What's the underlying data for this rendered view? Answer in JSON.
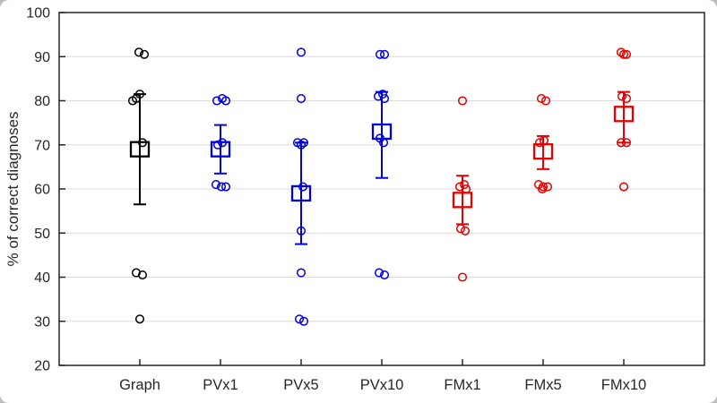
{
  "chart_data": {
    "type": "scatter",
    "title": "",
    "xlabel": "",
    "ylabel": "% of correct diagnoses",
    "ylim": [
      20,
      100
    ],
    "yticks": [
      20,
      30,
      40,
      50,
      60,
      70,
      80,
      90,
      100
    ],
    "grid": true,
    "legend": "none",
    "marker_style": {
      "points": "open-circle",
      "mean": "open-square",
      "error_bar": "vertical-with-caps"
    },
    "categories": [
      "Graph",
      "PVx1",
      "PVx5",
      "PVx10",
      "FMx1",
      "FMx5",
      "FMx10"
    ],
    "series": [
      {
        "category": "Graph",
        "color": "#000000",
        "points": [
          91,
          90.5,
          81.5,
          80.5,
          80,
          70.5,
          41,
          40.5,
          30.5
        ],
        "jitter": [
          -1,
          5,
          0,
          -4,
          -8,
          3,
          -4,
          3,
          0
        ],
        "mean": 69,
        "ci_low": 56.5,
        "ci_high": 81.5
      },
      {
        "category": "PVx1",
        "color": "#0000dd",
        "points": [
          80.5,
          80,
          80,
          70.5,
          70,
          61,
          60.5,
          60.5
        ],
        "jitter": [
          2,
          -4,
          6,
          2,
          -3,
          -5,
          1,
          6
        ],
        "mean": 69,
        "ci_low": 63.5,
        "ci_high": 74.5
      },
      {
        "category": "PVx5",
        "color": "#0000dd",
        "points": [
          91,
          80.5,
          70.5,
          70.5,
          70,
          60.5,
          50.5,
          41,
          30.5,
          30
        ],
        "jitter": [
          0,
          0,
          -4,
          3,
          0,
          2,
          0,
          0,
          -2,
          3
        ],
        "mean": 59,
        "ci_low": 47.5,
        "ci_high": 70.5
      },
      {
        "category": "PVx10",
        "color": "#0000dd",
        "points": [
          90.5,
          90.5,
          81.5,
          81,
          80.5,
          71.5,
          70.5,
          41,
          40.5
        ],
        "jitter": [
          -2,
          3,
          1,
          -4,
          3,
          -2,
          2,
          -3,
          3
        ],
        "mean": 73,
        "ci_low": 62.5,
        "ci_high": 82
      },
      {
        "category": "FMx1",
        "color": "#e60000",
        "points": [
          80,
          61,
          60.5,
          60,
          51,
          50.5,
          40
        ],
        "jitter": [
          0,
          2,
          -3,
          4,
          -2,
          3,
          0
        ],
        "mean": 57.5,
        "ci_low": 52,
        "ci_high": 63
      },
      {
        "category": "FMx5",
        "color": "#e60000",
        "points": [
          80.5,
          80,
          71,
          70.5,
          61,
          60.5,
          60.5,
          60
        ],
        "jitter": [
          -2,
          3,
          1,
          -4,
          -5,
          0,
          5,
          -1
        ],
        "mean": 68.5,
        "ci_low": 64.5,
        "ci_high": 72
      },
      {
        "category": "FMx10",
        "color": "#e60000",
        "points": [
          91,
          90.5,
          90.5,
          81,
          80.5,
          70.5,
          70.5,
          60.5
        ],
        "jitter": [
          -3,
          3,
          0,
          -2,
          3,
          -3,
          3,
          0
        ],
        "mean": 77,
        "ci_low": 70.5,
        "ci_high": 82
      }
    ]
  }
}
